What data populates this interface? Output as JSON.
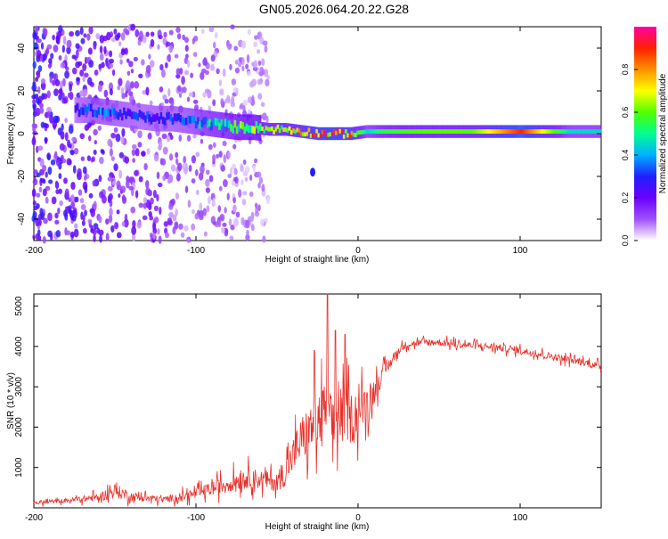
{
  "page_title": "GN05.2026.064.20.22.G28",
  "chart_data": [
    {
      "type": "heatmap",
      "xlabel": "Height of straight line (km)",
      "ylabel": "Frequency (Hz)",
      "xlim": [
        -200,
        150
      ],
      "ylim": [
        -50,
        50
      ],
      "xticks": [
        -200,
        -100,
        0,
        100
      ],
      "xtick_labels": [
        "-200",
        "-100",
        "0",
        "100"
      ],
      "yticks": [
        -40,
        -20,
        0,
        20,
        40
      ],
      "ytick_labels": [
        "-40",
        "-20",
        "0",
        "20",
        "40"
      ],
      "colorbar": {
        "label": "Normalized spectral amplitude",
        "range": [
          0,
          1
        ],
        "ticks": [
          0,
          0.2,
          0.4,
          0.6,
          0.8
        ],
        "tick_labels": [
          "0.0",
          "0.2",
          "0.4",
          "0.6",
          "0.8"
        ],
        "colors": [
          "#ffffff",
          "#a050ff",
          "#6a00ff",
          "#2020ff",
          "#00b0ff",
          "#00ff90",
          "#50ff00",
          "#ffff00",
          "#ff9000",
          "#ff2000",
          "#ff00a0"
        ]
      },
      "carrier_trace": {
        "x": [
          -175,
          -165,
          -155,
          -145,
          -135,
          -125,
          -115,
          -105,
          -95,
          -85,
          -75,
          -65,
          -55,
          -45,
          -35,
          -25,
          -15,
          -5,
          5,
          15,
          40,
          70,
          100,
          130,
          150
        ],
        "freq": [
          11,
          11,
          10,
          9,
          8,
          7,
          7,
          6,
          5,
          4,
          3,
          3,
          2,
          2,
          1,
          0,
          0,
          0,
          1,
          1,
          1,
          1,
          1,
          1,
          1
        ],
        "amplitude": [
          0.25,
          0.35,
          0.35,
          0.3,
          0.28,
          0.3,
          0.3,
          0.35,
          0.45,
          0.5,
          0.55,
          0.6,
          0.6,
          0.65,
          0.7,
          0.85,
          0.85,
          0.75,
          0.45,
          0.55,
          0.6,
          0.6,
          0.9,
          0.45,
          0.45
        ]
      },
      "noise_extent_km": [
        -200,
        -55
      ]
    },
    {
      "type": "line",
      "xlabel": "Height of straight line (km)",
      "ylabel": "SNR (10 * v/v)",
      "xlim": [
        -200,
        150
      ],
      "ylim": [
        0,
        5300
      ],
      "xticks": [
        -200,
        -100,
        0,
        100
      ],
      "xtick_labels": [
        "-200",
        "-100",
        "0",
        "100"
      ],
      "yticks": [
        1000,
        2000,
        3000,
        4000,
        5000
      ],
      "ytick_labels": [
        "1000",
        "2000",
        "3000",
        "4000",
        "5000"
      ],
      "series": [
        {
          "name": "SNR",
          "color": "#e8302a",
          "x": [
            -200,
            -180,
            -160,
            -150,
            -140,
            -120,
            -100,
            -90,
            -80,
            -70,
            -60,
            -50,
            -45,
            -40,
            -35,
            -30,
            -25,
            -20,
            -15,
            -10,
            -5,
            0,
            5,
            10,
            15,
            20,
            25,
            30,
            40,
            50,
            60,
            80,
            100,
            120,
            140,
            150
          ],
          "y": [
            120,
            180,
            260,
            420,
            280,
            200,
            340,
            480,
            600,
            760,
            700,
            640,
            900,
            1300,
            1700,
            1900,
            2100,
            2300,
            2000,
            2400,
            2200,
            2400,
            2600,
            2900,
            3300,
            3600,
            3900,
            4050,
            4100,
            4100,
            4050,
            4000,
            3900,
            3750,
            3600,
            3500
          ],
          "spread": [
            110,
            120,
            220,
            400,
            260,
            180,
            300,
            380,
            480,
            560,
            540,
            520,
            800,
            1000,
            1300,
            1400,
            1600,
            1800,
            1500,
            1600,
            1400,
            1300,
            1000,
            700,
            450,
            300,
            220,
            200,
            200,
            200,
            200,
            200,
            200,
            200,
            200,
            200
          ],
          "spikes": [
            {
              "x": -19,
              "y": 5300
            },
            {
              "x": -14,
              "y": 4400
            },
            {
              "x": -27,
              "y": 3900
            },
            {
              "x": -8,
              "y": 4300
            }
          ]
        }
      ]
    }
  ]
}
